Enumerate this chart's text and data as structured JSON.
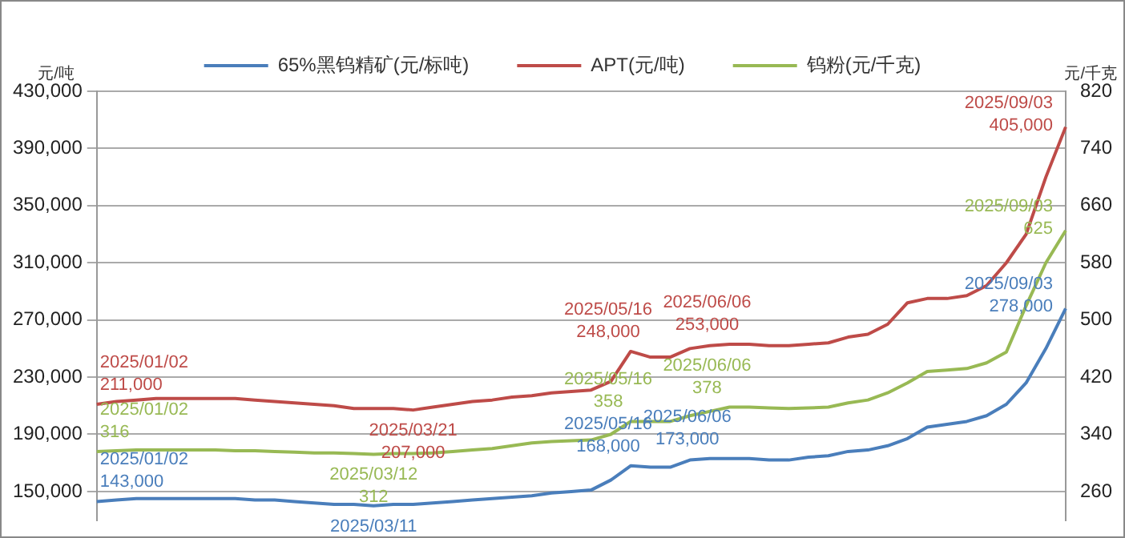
{
  "chart_data": {
    "type": "line",
    "ylabel": "元/吨",
    "y2label": "元/千克",
    "categories": [
      null,
      null,
      null,
      null,
      null,
      null,
      null,
      null,
      null,
      null,
      null,
      null,
      null,
      null,
      null,
      null,
      null,
      null,
      null,
      null,
      null,
      null,
      null,
      null,
      null,
      null,
      null,
      null,
      null,
      null,
      null,
      null,
      null,
      null,
      null,
      null,
      null,
      null,
      null,
      null,
      null,
      null,
      null,
      null,
      null,
      null,
      null,
      null,
      null,
      null
    ],
    "series": [
      {
        "name": "65%黑钨精矿(元/标吨)",
        "color": "#4a7ebb",
        "values": [
          143000,
          144000,
          145000,
          145000,
          145000,
          145000,
          145000,
          145000,
          144000,
          144000,
          143000,
          142000,
          141000,
          141000,
          140000,
          141000,
          141000,
          142000,
          143000,
          144000,
          145000,
          146000,
          147000,
          149000,
          150000,
          151000,
          158000,
          168000,
          167000,
          167000,
          172000,
          173000,
          173000,
          173000,
          172000,
          172000,
          174000,
          175000,
          178000,
          179000,
          182000,
          187000,
          195000,
          197000,
          199000,
          203000,
          211000,
          226000,
          250000,
          278000
        ],
        "value_labels": [
          "2025/01/02\n143,000",
          null,
          null,
          null,
          null,
          null,
          null,
          null,
          null,
          null,
          null,
          null,
          null,
          null,
          "2025/03/11",
          null,
          null,
          null,
          null,
          null,
          null,
          null,
          null,
          null,
          null,
          null,
          null,
          "2025/05/16\n168,000",
          null,
          null,
          null,
          "2025/06/06\n173,000",
          null,
          null,
          null,
          null,
          null,
          null,
          null,
          null,
          null,
          null,
          null,
          null,
          null,
          null,
          null,
          null,
          null,
          "2025/09/03\n278,000"
        ]
      },
      {
        "name": "APT(元/吨)",
        "color": "#be4b48",
        "values": [
          211000,
          213000,
          214000,
          215000,
          215000,
          215000,
          215000,
          215000,
          214000,
          213000,
          212000,
          211000,
          210000,
          208000,
          208000,
          208000,
          207000,
          209000,
          211000,
          213000,
          214000,
          216000,
          217000,
          219000,
          220000,
          221000,
          227000,
          248000,
          244000,
          244000,
          250000,
          252000,
          253000,
          253000,
          252000,
          252000,
          253000,
          254000,
          258000,
          260000,
          267000,
          282000,
          285000,
          285000,
          287000,
          294000,
          310000,
          330000,
          370000,
          405000
        ],
        "value_labels": [
          "2025/01/02\n211,000",
          null,
          null,
          null,
          null,
          null,
          null,
          null,
          null,
          null,
          null,
          null,
          null,
          null,
          null,
          null,
          "2025/03/21\n207,000",
          null,
          null,
          null,
          null,
          null,
          null,
          null,
          null,
          null,
          null,
          "2025/05/16\n248,000",
          null,
          null,
          null,
          null,
          "2025/06/06\n253,000",
          null,
          null,
          null,
          null,
          null,
          null,
          null,
          null,
          null,
          null,
          null,
          null,
          null,
          null,
          null,
          null,
          "2025/09/03\n405,000"
        ]
      },
      {
        "name": "钨粉(元/千克)",
        "color": "#98b954",
        "axis": "y2",
        "values": [
          316,
          317,
          318,
          318,
          318,
          318,
          318,
          317,
          317,
          316,
          315,
          314,
          314,
          313,
          312,
          313,
          313,
          314,
          316,
          318,
          320,
          324,
          328,
          330,
          331,
          332,
          340,
          358,
          358,
          358,
          366,
          372,
          378,
          378,
          377,
          376,
          377,
          378,
          384,
          388,
          398,
          412,
          428,
          430,
          432,
          440,
          455,
          520,
          580,
          625
        ],
        "value_labels": [
          "2025/01/02\n316",
          null,
          null,
          null,
          null,
          null,
          null,
          null,
          null,
          null,
          null,
          null,
          null,
          null,
          "2025/03/12\n312",
          null,
          null,
          null,
          null,
          null,
          null,
          null,
          null,
          null,
          null,
          null,
          null,
          "2025/05/16\n358",
          null,
          null,
          null,
          null,
          "2025/06/06\n378",
          null,
          null,
          null,
          null,
          null,
          null,
          null,
          null,
          null,
          null,
          null,
          null,
          null,
          null,
          null,
          null,
          "2025/09/03\n625"
        ]
      }
    ],
    "ylim": [
      130000,
      430000
    ],
    "yticks": [
      {
        "value": 150000,
        "label": "150,000"
      },
      {
        "value": 190000,
        "label": "190,000"
      },
      {
        "value": 230000,
        "label": "230,000"
      },
      {
        "value": 270000,
        "label": "270,000"
      },
      {
        "value": 310000,
        "label": "310,000"
      },
      {
        "value": 350000,
        "label": "350,000"
      },
      {
        "value": 390000,
        "label": "390,000"
      },
      {
        "value": 430000,
        "label": "430,000"
      }
    ],
    "y2lim": [
      220,
      820
    ],
    "y2ticks": [
      260,
      340,
      420,
      500,
      580,
      660,
      740,
      820
    ],
    "grid": "y",
    "legend": "top",
    "tick_labels": "y",
    "marker": "none",
    "line_style": "solid"
  }
}
